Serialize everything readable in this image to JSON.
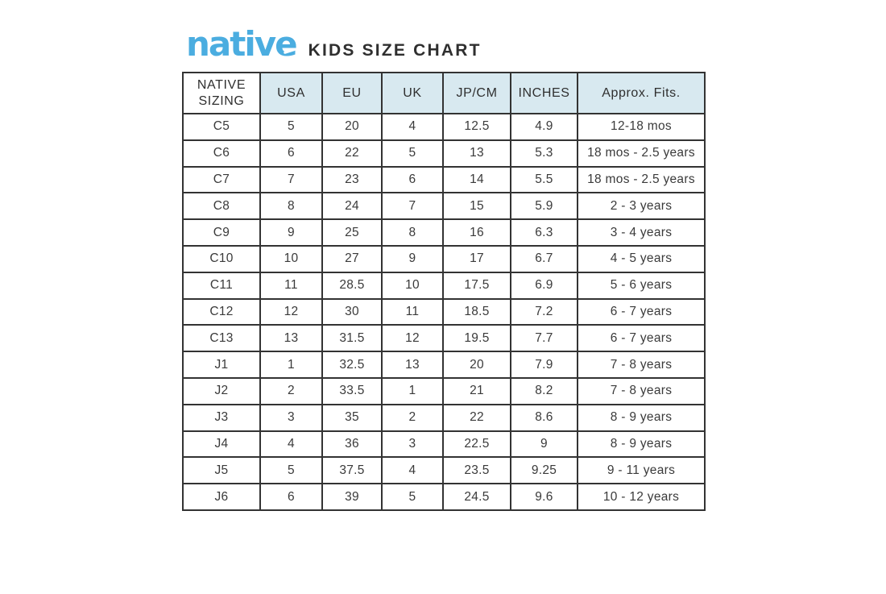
{
  "header": {
    "brand": "native",
    "title": "KIDS SIZE CHART"
  },
  "colors": {
    "brand_blue": "#4BADE0",
    "header_bg": "#D8E9F0",
    "border": "#333333",
    "text": "#3A3A3A"
  },
  "chart_data": {
    "type": "table",
    "title": "KIDS SIZE CHART",
    "columns": [
      "NATIVE\nSIZING",
      "USA",
      "EU",
      "UK",
      "JP/CM",
      "INCHES",
      "Approx. Fits."
    ],
    "rows": [
      [
        "C5",
        "5",
        "20",
        "4",
        "12.5",
        "4.9",
        "12-18 mos"
      ],
      [
        "C6",
        "6",
        "22",
        "5",
        "13",
        "5.3",
        "18 mos - 2.5 years"
      ],
      [
        "C7",
        "7",
        "23",
        "6",
        "14",
        "5.5",
        "18 mos - 2.5 years"
      ],
      [
        "C8",
        "8",
        "24",
        "7",
        "15",
        "5.9",
        "2 - 3 years"
      ],
      [
        "C9",
        "9",
        "25",
        "8",
        "16",
        "6.3",
        "3 - 4 years"
      ],
      [
        "C10",
        "10",
        "27",
        "9",
        "17",
        "6.7",
        "4 - 5 years"
      ],
      [
        "C11",
        "11",
        "28.5",
        "10",
        "17.5",
        "6.9",
        "5 - 6 years"
      ],
      [
        "C12",
        "12",
        "30",
        "11",
        "18.5",
        "7.2",
        "6 - 7 years"
      ],
      [
        "C13",
        "13",
        "31.5",
        "12",
        "19.5",
        "7.7",
        "6 - 7 years"
      ],
      [
        "J1",
        "1",
        "32.5",
        "13",
        "20",
        "7.9",
        "7 - 8 years"
      ],
      [
        "J2",
        "2",
        "33.5",
        "1",
        "21",
        "8.2",
        "7 - 8 years"
      ],
      [
        "J3",
        "3",
        "35",
        "2",
        "22",
        "8.6",
        "8 - 9 years"
      ],
      [
        "J4",
        "4",
        "36",
        "3",
        "22.5",
        "9",
        "8 - 9 years"
      ],
      [
        "J5",
        "5",
        "37.5",
        "4",
        "23.5",
        "9.25",
        "9 - 11 years"
      ],
      [
        "J6",
        "6",
        "39",
        "5",
        "24.5",
        "9.6",
        "10 - 12 years"
      ]
    ]
  }
}
